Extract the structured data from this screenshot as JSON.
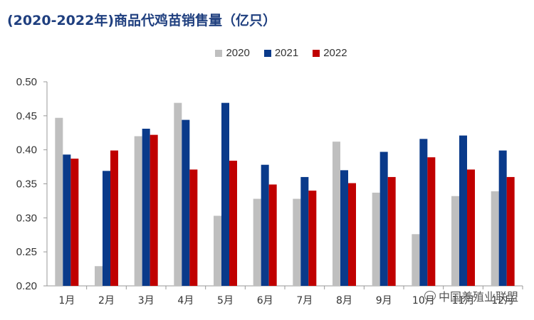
{
  "chart_data": {
    "type": "bar",
    "title": "(2020-2022年)商品代鸡苗销售量（亿只）",
    "categories": [
      "1月",
      "2月",
      "3月",
      "4月",
      "5月",
      "6月",
      "7月",
      "8月",
      "9月",
      "10月",
      "11月",
      "12月"
    ],
    "series": [
      {
        "name": "2020",
        "color": "#bfbfbf",
        "values": [
          0.447,
          0.229,
          0.42,
          0.469,
          0.303,
          0.328,
          0.328,
          0.412,
          0.337,
          0.276,
          0.332,
          0.339
        ]
      },
      {
        "name": "2021",
        "color": "#0a3a8a",
        "values": [
          0.393,
          0.369,
          0.431,
          0.444,
          0.469,
          0.378,
          0.36,
          0.37,
          0.397,
          0.416,
          0.421,
          0.399
        ]
      },
      {
        "name": "2022",
        "color": "#c00000",
        "values": [
          0.387,
          0.399,
          0.422,
          0.371,
          0.384,
          0.349,
          0.34,
          0.351,
          0.36,
          0.389,
          0.371,
          0.36
        ]
      }
    ],
    "ylim": [
      0.2,
      0.5
    ],
    "yticks": [
      "0.20",
      "0.25",
      "0.30",
      "0.35",
      "0.40",
      "0.45",
      "0.50"
    ],
    "legend_position": "top-center",
    "grid": false
  },
  "watermark": "中国养殖业联盟"
}
